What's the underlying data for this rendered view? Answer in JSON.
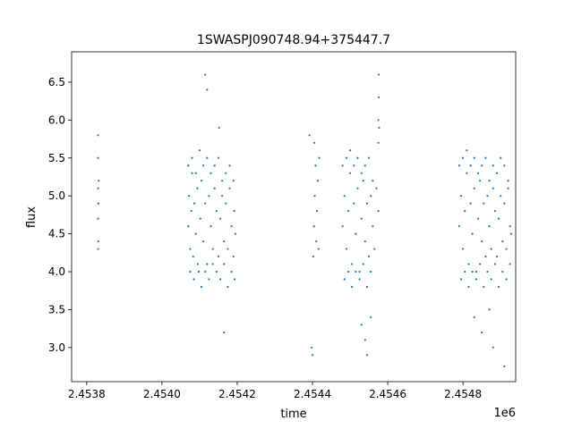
{
  "chart_data": {
    "type": "scatter",
    "title": "1SWASPJ090748.94+375447.7",
    "xlabel": "time",
    "ylabel": "flux",
    "x_offset_label": "1e6",
    "xlim": [
      2453760,
      2454940
    ],
    "ylim": [
      2.55,
      6.9
    ],
    "xticks": [
      2453800,
      2454000,
      2454200,
      2454400,
      2454600,
      2454800
    ],
    "xtick_labels": [
      "2.4538",
      "2.4540",
      "2.4542",
      "2.4544",
      "2.4546",
      "2.4548"
    ],
    "yticks": [
      3.0,
      3.5,
      4.0,
      4.5,
      5.0,
      5.5,
      6.0,
      6.5
    ],
    "ytick_labels": [
      "3.0",
      "3.5",
      "4.0",
      "4.5",
      "5.0",
      "5.5",
      "6.0",
      "6.5"
    ],
    "grid": false,
    "marker_color": "#1f77b4",
    "series": [
      {
        "x": [
          2453830,
          2453830,
          2453830,
          2453830,
          2453830,
          2453831,
          2453831,
          2453832,
          2454070,
          2454072,
          2454075,
          2454078,
          2454080,
          2454083,
          2454086,
          2454090,
          2454094,
          2454098,
          2454102,
          2454105,
          2454110,
          2454115,
          2454120,
          2454125,
          2454130,
          2454135,
          2454140,
          2454145,
          2454150,
          2454155,
          2454160,
          2454165,
          2454170,
          2454175,
          2454180,
          2454185,
          2454190,
          2454192,
          2454195,
          2454070,
          2454075,
          2454080,
          2454085,
          2454090,
          2454095,
          2454100,
          2454105,
          2454110,
          2454115,
          2454120,
          2454125,
          2454130,
          2454135,
          2454140,
          2454145,
          2454150,
          2454155,
          2454160,
          2454165,
          2454170,
          2454175,
          2454180,
          2454185,
          2454190,
          2454193,
          2454402,
          2454404,
          2454406,
          2454408,
          2454410,
          2454412,
          2454414,
          2454416,
          2454418,
          2454480,
          2454485,
          2454490,
          2454495,
          2454500,
          2454505,
          2454510,
          2454515,
          2454520,
          2454525,
          2454530,
          2454535,
          2454540,
          2454545,
          2454550,
          2454555,
          2454560,
          2454565,
          2454570,
          2454575,
          2454480,
          2454485,
          2454490,
          2454495,
          2454500,
          2454505,
          2454510,
          2454515,
          2454520,
          2454525,
          2454530,
          2454535,
          2454540,
          2454545,
          2454550,
          2454555,
          2454560,
          2454575,
          2454575,
          2454576,
          2454576,
          2454577,
          2454790,
          2454795,
          2454800,
          2454805,
          2454810,
          2454815,
          2454820,
          2454825,
          2454830,
          2454835,
          2454840,
          2454845,
          2454850,
          2454855,
          2454860,
          2454865,
          2454870,
          2454875,
          2454880,
          2454885,
          2454890,
          2454895,
          2454900,
          2454905,
          2454910,
          2454915,
          2454920,
          2454925,
          2454928,
          2454790,
          2454795,
          2454800,
          2454805,
          2454810,
          2454815,
          2454820,
          2454825,
          2454830,
          2454835,
          2454840,
          2454845,
          2454850,
          2454855,
          2454860,
          2454865,
          2454870,
          2454875,
          2454880,
          2454885,
          2454890,
          2454895,
          2454900,
          2454905,
          2454910,
          2454915,
          2454920,
          2454925,
          2454115,
          2454120,
          2454165,
          2454152,
          2454405,
          2454392,
          2454530,
          2454540,
          2454545,
          2454555,
          2454398,
          2454400,
          2454850,
          2454880,
          2454910,
          2454870,
          2454830
        ],
        "y": [
          4.3,
          4.7,
          5.1,
          5.5,
          5.8,
          4.9,
          4.4,
          5.2,
          4.6,
          5.0,
          4.3,
          4.8,
          5.3,
          4.2,
          4.9,
          4.5,
          5.1,
          4.0,
          4.7,
          5.2,
          4.4,
          4.9,
          4.1,
          5.0,
          4.6,
          4.3,
          5.1,
          4.8,
          4.2,
          4.7,
          5.0,
          4.4,
          4.9,
          4.3,
          5.1,
          4.6,
          4.2,
          4.8,
          4.5,
          5.4,
          4.0,
          5.5,
          3.9,
          5.3,
          4.1,
          5.6,
          3.8,
          5.4,
          4.0,
          5.5,
          3.9,
          5.3,
          4.1,
          5.4,
          4.0,
          5.5,
          3.9,
          5.2,
          4.1,
          5.3,
          3.8,
          5.4,
          4.0,
          5.2,
          3.9,
          4.2,
          4.6,
          5.0,
          5.4,
          4.4,
          4.8,
          5.2,
          4.3,
          5.5,
          4.6,
          5.0,
          4.3,
          4.8,
          5.3,
          4.1,
          4.9,
          4.5,
          5.1,
          4.0,
          4.7,
          5.2,
          4.4,
          4.9,
          4.2,
          5.0,
          4.6,
          4.3,
          5.1,
          4.8,
          5.4,
          3.9,
          5.5,
          4.0,
          5.6,
          3.8,
          5.4,
          4.0,
          5.5,
          3.9,
          5.3,
          4.1,
          5.4,
          3.8,
          5.5,
          4.0,
          5.2,
          5.7,
          6.0,
          6.3,
          6.6,
          5.9,
          4.6,
          5.0,
          4.3,
          4.8,
          5.3,
          4.1,
          4.9,
          4.5,
          5.1,
          4.0,
          4.7,
          5.2,
          4.4,
          4.9,
          4.2,
          5.0,
          4.6,
          4.3,
          5.1,
          4.8,
          4.2,
          4.7,
          5.0,
          4.4,
          4.9,
          4.3,
          5.1,
          4.6,
          4.5,
          5.4,
          3.9,
          5.5,
          4.0,
          5.6,
          3.8,
          5.4,
          4.0,
          5.5,
          3.9,
          5.3,
          4.1,
          5.4,
          3.8,
          5.5,
          4.0,
          5.2,
          3.9,
          5.4,
          4.1,
          5.3,
          3.8,
          5.5,
          4.0,
          5.4,
          3.9,
          5.2,
          4.1,
          6.6,
          6.4,
          3.2,
          5.9,
          5.7,
          5.8,
          3.3,
          3.1,
          2.9,
          3.4,
          3.0,
          2.9,
          3.2,
          3.0,
          2.75,
          3.5,
          3.4
        ]
      }
    ]
  }
}
